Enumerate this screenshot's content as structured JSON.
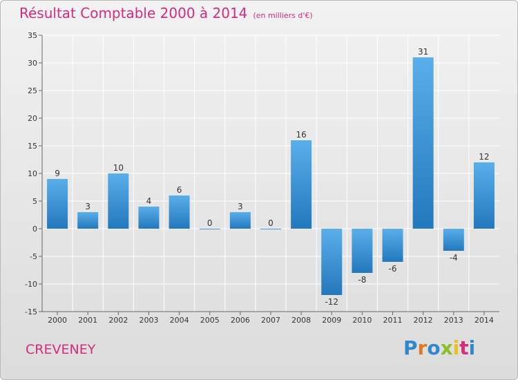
{
  "title": "Résultat Comptable 2000 à 2014",
  "subtitle": "(en milliers d'€)",
  "commune": "CREVENEY",
  "logo": {
    "letters": [
      "P",
      "r",
      "o",
      "x",
      "i",
      "t",
      "i"
    ],
    "colors": [
      "#2f88cf",
      "#e0772a",
      "#2f88cf",
      "#8cbf26",
      "#e8c21c",
      "#d42b7c",
      "#2f88cf"
    ]
  },
  "colors": {
    "title": "#d42b7c",
    "bar_top": "#5aaeea",
    "bar_bottom": "#2378bd",
    "grid": "#ffffff"
  },
  "chart_data": {
    "type": "bar",
    "title": "Résultat Comptable 2000 à 2014",
    "categories": [
      "2000",
      "2001",
      "2002",
      "2003",
      "2004",
      "2005",
      "2006",
      "2007",
      "2008",
      "2009",
      "2010",
      "2011",
      "2012",
      "2013",
      "2014"
    ],
    "values": [
      9,
      3,
      10,
      4,
      6,
      0,
      3,
      0,
      16,
      -12,
      -8,
      -6,
      31,
      -4,
      12
    ],
    "labels": [
      "9",
      "3",
      "10",
      "4",
      "6",
      "0",
      "3",
      "0",
      "16",
      "-12",
      "-8",
      "-6",
      "31",
      "-4",
      "12"
    ],
    "xlabel": "",
    "ylabel": "",
    "ylim": [
      -15,
      35
    ],
    "yticks": [
      -15,
      -10,
      -5,
      0,
      5,
      10,
      15,
      20,
      25,
      30,
      35
    ],
    "grid": true
  }
}
